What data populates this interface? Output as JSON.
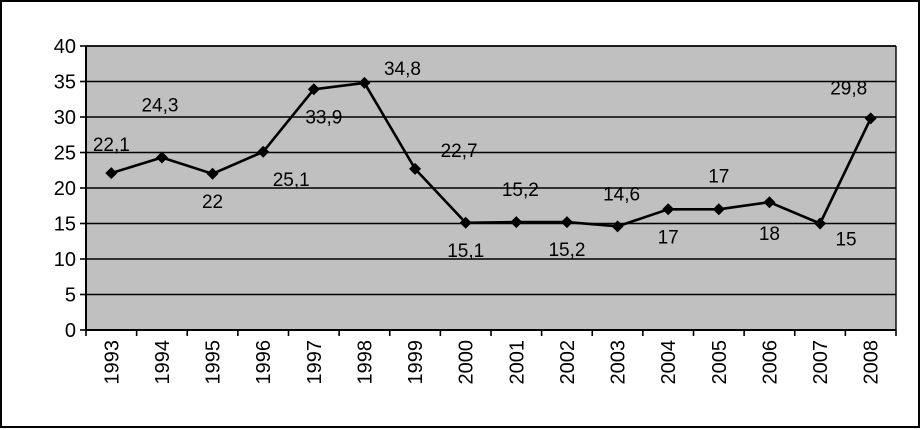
{
  "chart_data": {
    "type": "line",
    "title": "",
    "xlabel": "",
    "ylabel": "",
    "categories": [
      "1993",
      "1994",
      "1995",
      "1996",
      "1997",
      "1998",
      "1999",
      "2000",
      "2001",
      "2002",
      "2003",
      "2004",
      "2005",
      "2006",
      "2007",
      "2008"
    ],
    "series": [
      {
        "values": [
          22.1,
          24.3,
          22,
          25.1,
          33.9,
          34.8,
          22.7,
          15.1,
          15.2,
          15.2,
          14.6,
          17,
          17,
          18,
          15,
          29.8
        ],
        "data_labels": [
          "22,1",
          "24,3",
          "22",
          "25,1",
          "33,9",
          "34,8",
          "22,7",
          "15,1",
          "15,2",
          "15,2",
          "14,6",
          "17",
          "17",
          "18",
          "15",
          "29,8"
        ]
      }
    ],
    "ylim": [
      0,
      40
    ],
    "yticks": [
      0,
      5,
      10,
      15,
      20,
      25,
      30,
      35,
      40
    ],
    "ytick_labels": [
      "0",
      "5",
      "10",
      "15",
      "20",
      "25",
      "30",
      "35",
      "40"
    ],
    "grid": true,
    "legend": "none",
    "colors": {
      "plot_background": "#c0c0c0",
      "line": "#000000",
      "marker": "#000000",
      "gridline": "#000000"
    }
  }
}
